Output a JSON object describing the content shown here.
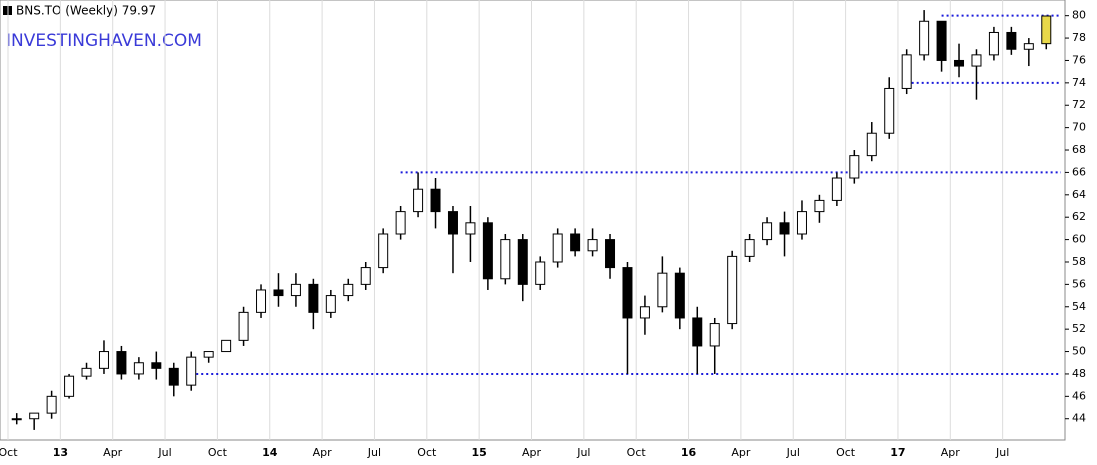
{
  "chart_data": {
    "type": "candlestick",
    "title": "BNS.TO (Weekly) 79.97",
    "watermark": "INVESTINGHAVEN.COM",
    "categories": [
      "Oct",
      null,
      null,
      "13",
      null,
      null,
      "Apr",
      null,
      null,
      "Jul",
      null,
      null,
      "Oct",
      null,
      null,
      "14",
      null,
      null,
      "Apr",
      null,
      null,
      "Jul",
      null,
      null,
      "Oct",
      null,
      null,
      "15",
      null,
      null,
      "Apr",
      null,
      null,
      "Jul",
      null,
      null,
      "Oct",
      null,
      null,
      "16",
      null,
      null,
      "Apr",
      null,
      null,
      "Jul",
      null,
      null,
      "Oct",
      null,
      null,
      "17",
      null,
      null,
      "Apr",
      null,
      null,
      "Jul",
      null,
      null
    ],
    "open": [
      44,
      44,
      44.5,
      46,
      47.8,
      48.5,
      50,
      48,
      49,
      48.5,
      47,
      49.5,
      50,
      51,
      53.5,
      55.5,
      55,
      56,
      53.5,
      55,
      56,
      57.5,
      60.5,
      62.5,
      64.5,
      62.5,
      60.5,
      61.5,
      56.5,
      60,
      56,
      58,
      60.5,
      59,
      60,
      57.5,
      53,
      54,
      57,
      53,
      50.5,
      52.5,
      58.5,
      60,
      61.5,
      60.5,
      62.5,
      63.5,
      65.5,
      67.5,
      69.5,
      73.5,
      76.5,
      79.5,
      76,
      75.5,
      76.5,
      78.5,
      77,
      77.5
    ],
    "high": [
      44.5,
      44.5,
      46.5,
      48,
      49,
      51,
      50.5,
      49.5,
      50,
      49,
      50,
      50,
      51,
      54,
      56,
      57,
      57,
      56.5,
      55.5,
      56.5,
      58,
      61,
      63,
      66,
      65.5,
      63,
      63,
      62,
      60.5,
      60.5,
      58.5,
      61,
      61,
      61,
      60.5,
      58,
      55,
      58.5,
      57.5,
      54,
      53,
      59,
      60.5,
      62,
      62.5,
      63.5,
      64,
      66,
      68,
      70.5,
      74.5,
      77,
      80.5,
      79.5,
      77.5,
      77,
      79,
      79,
      78,
      80
    ],
    "low": [
      43.5,
      43,
      44,
      45.8,
      47.5,
      48,
      47.5,
      47.5,
      47.5,
      46,
      46.5,
      49,
      50,
      50.5,
      53,
      54,
      54,
      52,
      53,
      54.5,
      55.5,
      57,
      60,
      62,
      61,
      57,
      58,
      55.5,
      56,
      54.5,
      55.5,
      57.5,
      58.5,
      58.5,
      56.5,
      48,
      51.5,
      53.5,
      52,
      48,
      48,
      52,
      58,
      59.5,
      58.5,
      60,
      61.5,
      63,
      65,
      67,
      69,
      73,
      76,
      75,
      74.5,
      72.5,
      76,
      76.5,
      75.5,
      77
    ],
    "close": [
      44,
      44.5,
      46,
      47.8,
      48.5,
      50,
      48,
      49,
      48.5,
      47,
      49.5,
      50,
      51,
      53.5,
      55.5,
      55,
      56,
      53.5,
      55,
      56,
      57.5,
      60.5,
      62.5,
      64.5,
      62.5,
      60.5,
      61.5,
      56.5,
      60,
      56,
      58,
      60.5,
      59,
      60,
      57.5,
      53,
      54,
      57,
      53,
      50.5,
      52.5,
      58.5,
      60,
      61.5,
      60.5,
      62.5,
      63.5,
      65.5,
      67.5,
      69.5,
      73.5,
      76.5,
      79.5,
      76,
      75.5,
      76.5,
      78.5,
      77,
      77.5,
      79.97
    ],
    "color": "#000000",
    "last_color": "#e8d84a",
    "reference_lines": [
      {
        "y": 80,
        "start": 53
      },
      {
        "y": 74,
        "start": 51
      },
      {
        "y": 66,
        "start": 22
      },
      {
        "y": 48,
        "start": 10
      }
    ],
    "reference_color": "#1a1adb",
    "ylim": [
      42.1,
      81.4
    ],
    "yticks": [
      44,
      46,
      48,
      50,
      52,
      54,
      56,
      58,
      60,
      62,
      64,
      66,
      68,
      70,
      72,
      74,
      76,
      78,
      80
    ],
    "grid": true
  }
}
